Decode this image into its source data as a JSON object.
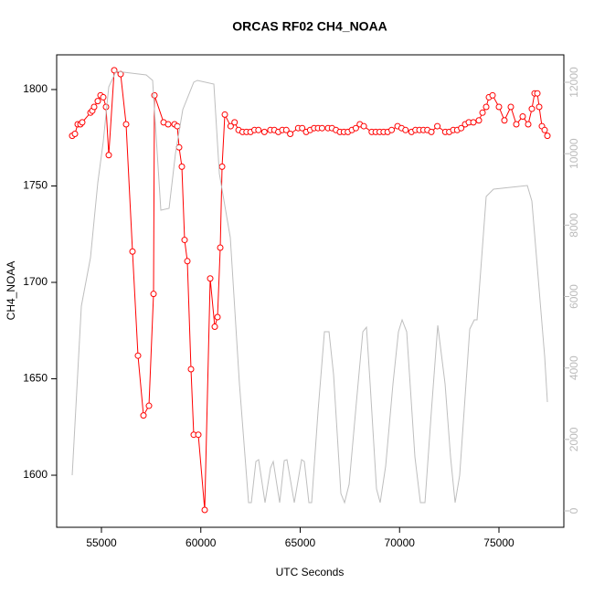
{
  "chart_data": {
    "type": "line",
    "title": "ORCAS RF02 CH4_NOAA",
    "xlabel": "UTC Seconds",
    "ylabel": "CH4_NOAA",
    "xlim": [
      52747,
      78265
    ],
    "xticks": [
      55000,
      60000,
      65000,
      70000,
      75000
    ],
    "ylim": [
      1573,
      1818
    ],
    "yticks": [
      1600,
      1650,
      1700,
      1750,
      1800
    ],
    "y2lim": [
      -460,
      12768
    ],
    "y2ticks": [
      0,
      2000,
      4000,
      6000,
      8000,
      10000,
      12000
    ],
    "series": [
      {
        "color": "#ff0000",
        "markers": true,
        "x": [
          53529,
          53667,
          53805,
          53943,
          54034,
          54448,
          54540,
          54632,
          54816,
          54954,
          55092,
          55230,
          55368,
          55644,
          55966,
          56241,
          56563,
          56839,
          57115,
          57391,
          57621,
          57667,
          58127,
          58357,
          58678,
          58816,
          58908,
          59046,
          59184,
          59322,
          59506,
          59644,
          59874,
          60196,
          60472,
          60702,
          60840,
          60978,
          61070,
          61208,
          61500,
          61700,
          61900,
          62100,
          62300,
          62500,
          62700,
          62900,
          63200,
          63500,
          63700,
          63900,
          64100,
          64300,
          64500,
          64900,
          65100,
          65300,
          65500,
          65700,
          65900,
          66100,
          66400,
          66600,
          66800,
          67000,
          67200,
          67400,
          67600,
          67800,
          68000,
          68200,
          68600,
          68800,
          69000,
          69200,
          69400,
          69600,
          69900,
          70100,
          70300,
          70600,
          70800,
          71000,
          71200,
          71400,
          71600,
          71900,
          72300,
          72500,
          72700,
          72900,
          73100,
          73300,
          73484,
          73714,
          73990,
          74174,
          74358,
          74495,
          74679,
          75000,
          75276,
          75598,
          75874,
          76196,
          76472,
          76656,
          76794,
          76932,
          77024,
          77162,
          77300,
          77438
        ],
        "values": [
          1776,
          1777,
          1782,
          1782,
          1783,
          1788,
          1789,
          1791,
          1794,
          1797,
          1796,
          1791,
          1766,
          1810,
          1808,
          1782,
          1716,
          1662,
          1631,
          1636,
          1694,
          1797,
          1783,
          1782,
          1782,
          1781,
          1770,
          1760,
          1722,
          1711,
          1655,
          1621,
          1621,
          1582,
          1702,
          1677,
          1682,
          1718,
          1760,
          1787,
          1781,
          1783,
          1779,
          1778,
          1778,
          1778,
          1779,
          1779,
          1778,
          1779,
          1779,
          1778,
          1779,
          1779,
          1777,
          1780,
          1780,
          1778,
          1779,
          1780,
          1780,
          1780,
          1780,
          1780,
          1779,
          1778,
          1778,
          1778,
          1779,
          1780,
          1782,
          1781,
          1778,
          1778,
          1778,
          1778,
          1778,
          1779,
          1781,
          1780,
          1779,
          1778,
          1779,
          1779,
          1779,
          1779,
          1778,
          1781,
          1778,
          1778,
          1779,
          1779,
          1780,
          1782,
          1783,
          1783,
          1784,
          1788,
          1791,
          1796,
          1797,
          1791,
          1784,
          1791,
          1782,
          1786,
          1782,
          1790,
          1798,
          1798,
          1791,
          1781,
          1779,
          1776
        ]
      },
      {
        "color": "#bebebe",
        "axis": "y2",
        "markers": false,
        "x": [
          53529,
          53989,
          54448,
          54816,
          55092,
          55368,
          55736,
          57253,
          57575,
          57989,
          58403,
          58724,
          59092,
          59644,
          59828,
          60656,
          60932,
          61484,
          61943,
          62403,
          62541,
          62771,
          62909,
          63231,
          63507,
          63645,
          63967,
          64197,
          64335,
          64703,
          65070,
          65208,
          65438,
          65576,
          65898,
          66220,
          66450,
          66680,
          67047,
          67231,
          67461,
          67829,
          68151,
          68335,
          68519,
          68840,
          69024,
          69300,
          69668,
          69944,
          70128,
          70358,
          70772,
          71048,
          71278,
          71600,
          71922,
          72289,
          72565,
          72795,
          73025,
          73531,
          73761,
          73899,
          74358,
          74725,
          76427,
          76656,
          77300,
          77438
        ],
        "values": [
          998,
          5732,
          7088,
          9186,
          10338,
          11873,
          12308,
          12206,
          12052,
          8419,
          8470,
          10005,
          11233,
          12001,
          12052,
          11950,
          9442,
          7651,
          3557,
          230,
          230,
          1382,
          1433,
          230,
          1203,
          1382,
          230,
          1407,
          1433,
          230,
          1433,
          1382,
          230,
          230,
          2789,
          5015,
          5015,
          3813,
          486,
          230,
          742,
          3045,
          5015,
          5143,
          3557,
          614,
          230,
          1254,
          3557,
          5015,
          5348,
          5015,
          1510,
          230,
          230,
          2789,
          5194,
          3557,
          1510,
          230,
          998,
          5092,
          5348,
          5348,
          8803,
          9007,
          9109,
          8675,
          4324,
          3045
        ]
      }
    ]
  }
}
